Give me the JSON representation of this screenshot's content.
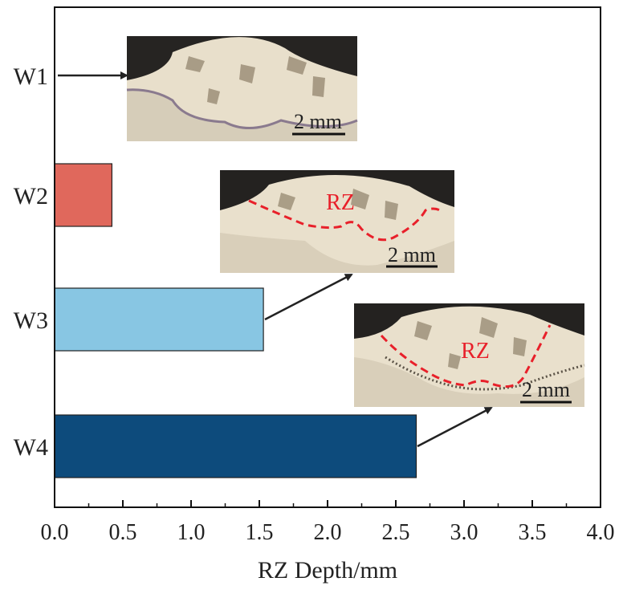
{
  "chart_data": {
    "type": "bar",
    "orientation": "horizontal",
    "categories": [
      "W1",
      "W2",
      "W3",
      "W4"
    ],
    "values": [
      0,
      0.42,
      1.53,
      2.65
    ],
    "colors": [
      "#ffffff",
      "#e0685c",
      "#88c6e3",
      "#0d4b7c"
    ],
    "xlabel": "RZ Depth/mm",
    "xlim": [
      0.0,
      4.0
    ],
    "ticks": [
      "0.0",
      "0.5",
      "1.0",
      "1.5",
      "2.0",
      "2.5",
      "3.0",
      "3.5",
      "4.0"
    ],
    "grid": false
  },
  "insets": [
    {
      "label": "",
      "scale_bar": "2 mm"
    },
    {
      "label": "RZ",
      "scale_bar": "2 mm"
    },
    {
      "label": "RZ",
      "scale_bar": "2 mm"
    }
  ],
  "colors": {
    "rz_dash": "#e8202a",
    "micrograph_bg": "#d8cdb8"
  }
}
